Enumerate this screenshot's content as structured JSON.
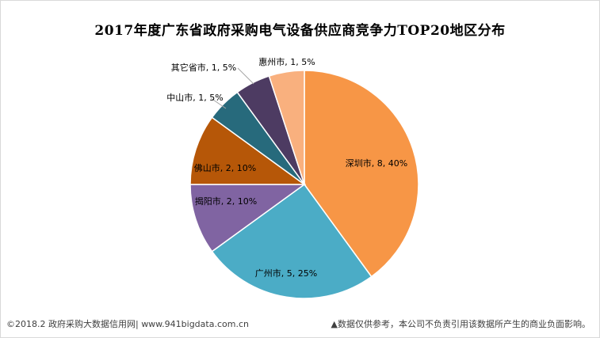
{
  "chart_data": {
    "type": "pie",
    "title": "2017年度广东省政府采购电气设备供应商竞争力TOP20地区分布",
    "labels": [
      "深圳市",
      "广州市",
      "揭阳市",
      "佛山市",
      "中山市",
      "其它省市",
      "惠州市"
    ],
    "values": [
      8,
      5,
      2,
      2,
      1,
      1,
      1
    ],
    "percents": [
      40,
      25,
      10,
      10,
      5,
      5,
      5
    ],
    "data_labels": [
      "深圳市, 8, 40%",
      "广州市, 5, 25%",
      "揭阳市, 2, 10%",
      "佛山市, 2, 10%",
      "中山市, 1, 5%",
      "其它省市, 1, 5%",
      "惠州市, 1, 5%"
    ],
    "colors": [
      "#F79646",
      "#4BACC6",
      "#8064A2",
      "#B65708",
      "#276A7C",
      "#4D3B62",
      "#F9B07E"
    ]
  },
  "footer": {
    "left": "©2018.2 政府采购大数据信用网| www.941bigdata.com.cn",
    "right": "▲数据仅供参考，本公司不负责引用该数据所产生的商业负面影响。"
  }
}
